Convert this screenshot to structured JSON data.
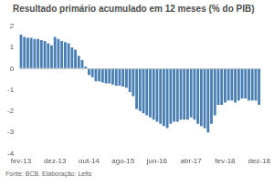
{
  "chart_data": {
    "type": "bar",
    "title": "Resultado primário acumulado em 12 meses (% do PIB)",
    "source": "Fonte: BCB. Elaboração: Lefis",
    "categories": [
      "fev-13",
      null,
      null,
      null,
      null,
      null,
      null,
      null,
      null,
      null,
      "dez-13",
      null,
      null,
      null,
      null,
      null,
      null,
      null,
      null,
      null,
      "out-14",
      null,
      null,
      null,
      null,
      null,
      null,
      null,
      null,
      null,
      "ago-15",
      null,
      null,
      null,
      null,
      null,
      null,
      null,
      null,
      null,
      "jun-16",
      null,
      null,
      null,
      null,
      null,
      null,
      null,
      null,
      null,
      "abr-17",
      null,
      null,
      null,
      null,
      null,
      null,
      null,
      null,
      null,
      "fev-18",
      null,
      null,
      null,
      null,
      null,
      null,
      null,
      null,
      null,
      "dez-18"
    ],
    "values": [
      1.6,
      1.5,
      1.45,
      1.45,
      1.4,
      1.4,
      1.35,
      1.3,
      1.2,
      1.1,
      1.5,
      1.4,
      1.3,
      1.25,
      1.2,
      1.0,
      0.9,
      0.6,
      0.4,
      0.1,
      -0.3,
      -0.4,
      -0.6,
      -0.6,
      -0.65,
      -0.7,
      -0.7,
      -0.75,
      -0.8,
      -0.8,
      -0.85,
      -0.9,
      -1.1,
      -1.3,
      -1.9,
      -2.0,
      -2.1,
      -2.2,
      -2.3,
      -2.4,
      -2.5,
      -2.6,
      -2.7,
      -2.8,
      -2.6,
      -2.5,
      -2.5,
      -2.4,
      -2.4,
      -2.4,
      -2.3,
      -2.4,
      -2.6,
      -2.7,
      -2.8,
      -3.0,
      -2.6,
      -2.2,
      -1.7,
      -1.7,
      -1.6,
      -1.5,
      -1.5,
      -1.6,
      -1.5,
      -1.4,
      -1.4,
      -1.5,
      -1.5,
      -1.5,
      -1.7
    ],
    "color": "#4a7fb5",
    "ylim": [
      -4,
      2
    ],
    "yticks": [
      -4,
      -3,
      -2,
      -1,
      0,
      1,
      2
    ],
    "grid": false
  }
}
